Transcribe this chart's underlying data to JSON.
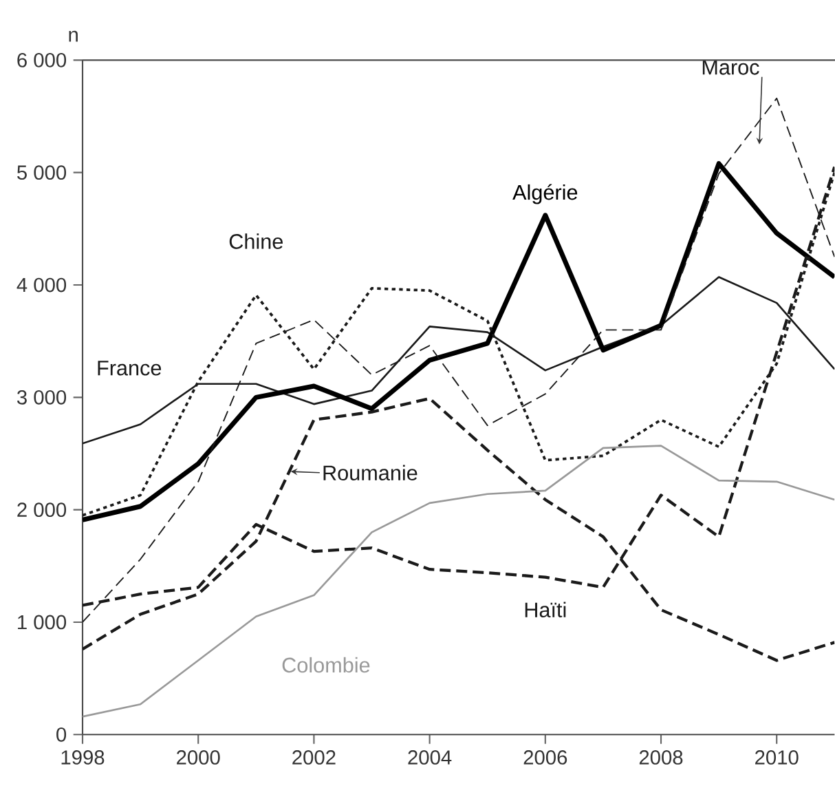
{
  "chart_data": {
    "type": "line",
    "ylabel": "n",
    "x": [
      1998,
      1999,
      2000,
      2001,
      2002,
      2003,
      2004,
      2005,
      2006,
      2007,
      2008,
      2009,
      2010,
      2011
    ],
    "xlim": [
      1998,
      2011
    ],
    "xticks": [
      1998,
      2000,
      2002,
      2004,
      2006,
      2008,
      2010
    ],
    "ylim": [
      0,
      6000
    ],
    "yticks": [
      {
        "value": 0,
        "label": "0"
      },
      {
        "value": 1000,
        "label": "1 000"
      },
      {
        "value": 2000,
        "label": "2 000"
      },
      {
        "value": 3000,
        "label": "3 000"
      },
      {
        "value": 4000,
        "label": "4 000"
      },
      {
        "value": 5000,
        "label": "5 000"
      },
      {
        "value": 6000,
        "label": "6 000"
      }
    ],
    "grid": false,
    "marker": "none",
    "series": [
      {
        "name": "France",
        "color": "#1a1a1a",
        "line_style": "solid",
        "values": [
          2590,
          2760,
          3120,
          3120,
          2940,
          3060,
          3630,
          3580,
          3240,
          3450,
          3640,
          4070,
          3840,
          3250
        ]
      },
      {
        "name": "Algérie",
        "color": "#000000",
        "line_style": "solid",
        "values": [
          1910,
          2030,
          2410,
          3000,
          3100,
          2900,
          3330,
          3480,
          4620,
          3420,
          3640,
          5080,
          4460,
          4070
        ]
      },
      {
        "name": "Chine",
        "color": "#1a1a1a",
        "line_style": "dotted",
        "values": [
          1950,
          2130,
          3140,
          3910,
          3250,
          3970,
          3950,
          3680,
          2440,
          2480,
          2800,
          2560,
          3300,
          5000
        ]
      },
      {
        "name": "Maroc",
        "color": "#1a1a1a",
        "line_style": "dashed",
        "values": [
          1000,
          1560,
          2250,
          3480,
          3690,
          3200,
          3460,
          2750,
          3030,
          3600,
          3600,
          4990,
          5660,
          4250
        ]
      },
      {
        "name": "Roumanie",
        "color": "#1a1a1a",
        "line_style": "dashed",
        "values": [
          760,
          1070,
          1250,
          1720,
          2800,
          2870,
          2990,
          2530,
          2090,
          1760,
          1110,
          890,
          660,
          820
        ]
      },
      {
        "name": "Haïti",
        "color": "#1a1a1a",
        "line_style": "dashed",
        "values": [
          1150,
          1250,
          1310,
          1870,
          1630,
          1660,
          1470,
          1440,
          1400,
          1310,
          2130,
          1760,
          3400,
          5050
        ]
      },
      {
        "name": "Colombie",
        "color": "#999999",
        "line_style": "solid",
        "values": [
          160,
          270,
          660,
          1050,
          1240,
          1800,
          2060,
          2140,
          2170,
          2550,
          2570,
          2260,
          2250,
          2090
        ]
      }
    ]
  }
}
